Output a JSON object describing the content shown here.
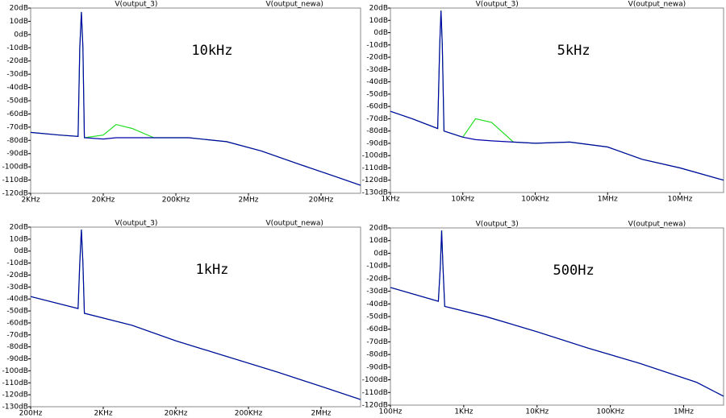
{
  "chart_data": [
    {
      "type": "line",
      "log_x": true,
      "annotation": "10kHz",
      "annotation_color": "#33cc33",
      "x": [
        2000,
        5000,
        9000,
        9500,
        10000,
        10500,
        11000,
        20000,
        30000,
        50000,
        100000,
        300000,
        1000000,
        3000000,
        10000000,
        30000000,
        70000000
      ],
      "series": [
        {
          "name": "V(output_3)",
          "color": "#22dd22",
          "values": [
            -74,
            -76,
            -77,
            -10,
            17,
            -10,
            -78,
            -76,
            -68,
            -71,
            -78,
            -78,
            -81,
            -88,
            -98,
            -107,
            -114
          ]
        },
        {
          "name": "V(output_newa)",
          "color": "#0000aa",
          "values": [
            -74,
            -76,
            -77,
            -10,
            17,
            -10,
            -78,
            -79,
            -78,
            -78,
            -78,
            -78,
            -81,
            -88,
            -98,
            -107,
            -114
          ]
        }
      ],
      "xlim": [
        2000,
        70000000
      ],
      "xticks": [
        {
          "value": 2000,
          "label": "2KHz"
        },
        {
          "value": 20000,
          "label": "20KHz"
        },
        {
          "value": 200000,
          "label": "200KHz"
        },
        {
          "value": 2000000,
          "label": "2MHz"
        },
        {
          "value": 20000000,
          "label": "20MHz"
        }
      ],
      "ylim": [
        -120,
        20
      ],
      "yticks": [
        {
          "value": 20,
          "label": "20dB"
        },
        {
          "value": 10,
          "label": "10dB"
        },
        {
          "value": 0,
          "label": "0dB"
        },
        {
          "value": -10,
          "label": "-10dB"
        },
        {
          "value": -20,
          "label": "-20dB"
        },
        {
          "value": -30,
          "label": "-30dB"
        },
        {
          "value": -40,
          "label": "-40dB"
        },
        {
          "value": -50,
          "label": "-50dB"
        },
        {
          "value": -60,
          "label": "-60dB"
        },
        {
          "value": -70,
          "label": "-70dB"
        },
        {
          "value": -80,
          "label": "-80dB"
        },
        {
          "value": -90,
          "label": "-90dB"
        },
        {
          "value": -100,
          "label": "-100dB"
        },
        {
          "value": -110,
          "label": "-110dB"
        },
        {
          "value": -120,
          "label": "-120dB"
        }
      ]
    },
    {
      "type": "line",
      "log_x": true,
      "annotation": "5kHz",
      "annotation_color": "#33cc33",
      "x": [
        1000,
        2000,
        4500,
        4800,
        5000,
        5200,
        5500,
        10000,
        15000,
        25000,
        50000,
        100000,
        300000,
        1000000,
        3000000,
        10000000,
        40000000
      ],
      "series": [
        {
          "name": "V(output_3)",
          "color": "#22dd22",
          "values": [
            -64,
            -70,
            -78,
            -10,
            18,
            -10,
            -80,
            -85,
            -70,
            -73,
            -89,
            -90,
            -89,
            -93,
            -103,
            -110,
            -120
          ]
        },
        {
          "name": "V(output_newa)",
          "color": "#0000aa",
          "values": [
            -64,
            -70,
            -78,
            -10,
            18,
            -10,
            -80,
            -85,
            -87,
            -88,
            -89,
            -90,
            -89,
            -93,
            -103,
            -110,
            -120
          ]
        }
      ],
      "xlim": [
        1000,
        40000000
      ],
      "xticks": [
        {
          "value": 1000,
          "label": "1KHz"
        },
        {
          "value": 10000,
          "label": "10KHz"
        },
        {
          "value": 100000,
          "label": "100KHz"
        },
        {
          "value": 1000000,
          "label": "1MHz"
        },
        {
          "value": 10000000,
          "label": "10MHz"
        }
      ],
      "ylim": [
        -130,
        20
      ],
      "yticks": [
        {
          "value": 20,
          "label": "20dB"
        },
        {
          "value": 10,
          "label": "10dB"
        },
        {
          "value": 0,
          "label": "0dB"
        },
        {
          "value": -10,
          "label": "-10dB"
        },
        {
          "value": -20,
          "label": "-20dB"
        },
        {
          "value": -30,
          "label": "-30dB"
        },
        {
          "value": -40,
          "label": "-40dB"
        },
        {
          "value": -50,
          "label": "-50dB"
        },
        {
          "value": -60,
          "label": "-60dB"
        },
        {
          "value": -70,
          "label": "-70dB"
        },
        {
          "value": -80,
          "label": "-80dB"
        },
        {
          "value": -90,
          "label": "-90dB"
        },
        {
          "value": -100,
          "label": "-100dB"
        },
        {
          "value": -110,
          "label": "-110dB"
        },
        {
          "value": -120,
          "label": "-120dB"
        },
        {
          "value": -130,
          "label": "-130dB"
        }
      ]
    },
    {
      "type": "line",
      "log_x": true,
      "annotation": "1kHz",
      "annotation_color": "#33cc33",
      "x": [
        200,
        900,
        950,
        1000,
        1050,
        1100,
        5000,
        20000,
        100000,
        500000,
        2000000,
        7000000
      ],
      "series": [
        {
          "name": "V(output_3)",
          "color": "#22dd22",
          "values": [
            -38,
            -48,
            -10,
            18,
            -10,
            -52,
            -62,
            -75,
            -88,
            -101,
            -113,
            -124
          ]
        },
        {
          "name": "V(output_newa)",
          "color": "#0000aa",
          "values": [
            -38,
            -48,
            -10,
            18,
            -10,
            -52,
            -62,
            -75,
            -88,
            -101,
            -113,
            -124
          ]
        }
      ],
      "xlim": [
        200,
        7000000
      ],
      "xticks": [
        {
          "value": 200,
          "label": "200Hz"
        },
        {
          "value": 2000,
          "label": "2KHz"
        },
        {
          "value": 20000,
          "label": "20KHz"
        },
        {
          "value": 200000,
          "label": "200KHz"
        },
        {
          "value": 2000000,
          "label": "2MHz"
        }
      ],
      "ylim": [
        -130,
        20
      ],
      "yticks": [
        {
          "value": 20,
          "label": "20dB"
        },
        {
          "value": 10,
          "label": "10dB"
        },
        {
          "value": 0,
          "label": "0dB"
        },
        {
          "value": -10,
          "label": "-10dB"
        },
        {
          "value": -20,
          "label": "-20dB"
        },
        {
          "value": -30,
          "label": "-30dB"
        },
        {
          "value": -40,
          "label": "-40dB"
        },
        {
          "value": -50,
          "label": "-50dB"
        },
        {
          "value": -60,
          "label": "-60dB"
        },
        {
          "value": -70,
          "label": "-70dB"
        },
        {
          "value": -80,
          "label": "-80dB"
        },
        {
          "value": -90,
          "label": "-90dB"
        },
        {
          "value": -100,
          "label": "-100dB"
        },
        {
          "value": -110,
          "label": "-110dB"
        },
        {
          "value": -120,
          "label": "-120dB"
        },
        {
          "value": -130,
          "label": "-130dB"
        }
      ]
    },
    {
      "type": "line",
      "log_x": true,
      "annotation": "500Hz",
      "annotation_color": "#33cc33",
      "x": [
        100,
        450,
        480,
        500,
        520,
        550,
        2000,
        10000,
        50000,
        250000,
        1500000,
        3500000
      ],
      "series": [
        {
          "name": "V(output_3)",
          "color": "#22dd22",
          "values": [
            -27,
            -38,
            -10,
            18,
            -10,
            -42,
            -50,
            -62,
            -75,
            -87,
            -102,
            -113
          ]
        },
        {
          "name": "V(output_newa)",
          "color": "#0000aa",
          "values": [
            -27,
            -38,
            -10,
            18,
            -10,
            -42,
            -50,
            -62,
            -75,
            -87,
            -102,
            -113
          ]
        }
      ],
      "xlim": [
        100,
        3500000
      ],
      "xticks": [
        {
          "value": 100,
          "label": "100Hz"
        },
        {
          "value": 1000,
          "label": "1KHz"
        },
        {
          "value": 10000,
          "label": "10KHz"
        },
        {
          "value": 100000,
          "label": "100KHz"
        },
        {
          "value": 1000000,
          "label": "1MHz"
        }
      ],
      "ylim": [
        -120,
        20
      ],
      "yticks": [
        {
          "value": 20,
          "label": "20dB"
        },
        {
          "value": 10,
          "label": "10dB"
        },
        {
          "value": 0,
          "label": "0dB"
        },
        {
          "value": -10,
          "label": "-10dB"
        },
        {
          "value": -20,
          "label": "-20dB"
        },
        {
          "value": -30,
          "label": "-30dB"
        },
        {
          "value": -40,
          "label": "-40dB"
        },
        {
          "value": -50,
          "label": "-50dB"
        },
        {
          "value": -60,
          "label": "-60dB"
        },
        {
          "value": -70,
          "label": "-70dB"
        },
        {
          "value": -80,
          "label": "-80dB"
        },
        {
          "value": -90,
          "label": "-90dB"
        },
        {
          "value": -100,
          "label": "-100dB"
        },
        {
          "value": -110,
          "label": "-110dB"
        },
        {
          "value": -120,
          "label": "-120dB"
        }
      ]
    }
  ]
}
